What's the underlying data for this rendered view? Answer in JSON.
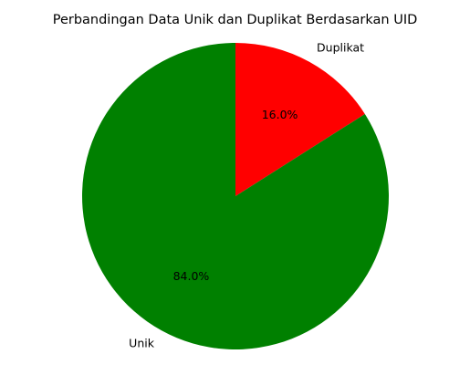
{
  "chart_data": {
    "type": "pie",
    "title": "Perbandingan Data Unik dan Duplikat Berdasarkan UID",
    "categories": [
      "Duplikat",
      "Unik"
    ],
    "values": [
      16.0,
      84.0
    ],
    "percent_labels": [
      "16.0%",
      "84.0%"
    ],
    "colors": [
      "#ff0000",
      "#008000"
    ],
    "start_angle_deg": 90,
    "direction": "clockwise",
    "legend": "none"
  }
}
